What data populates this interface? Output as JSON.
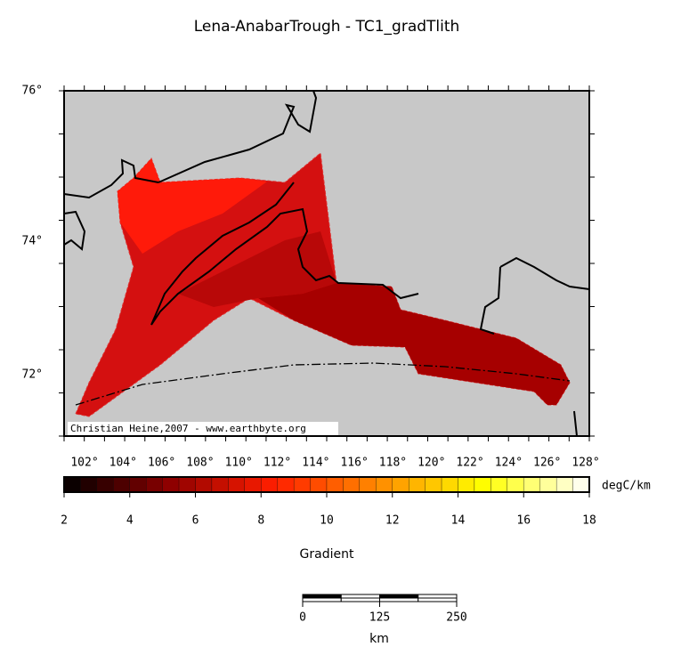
{
  "title": "Lena-AnabarTrough - TC1_gradTlith",
  "map": {
    "lat_labels": [
      "76°",
      "74°",
      "72°"
    ],
    "lon_labels": [
      "102°",
      "104°",
      "106°",
      "108°",
      "110°",
      "112°",
      "114°",
      "116°",
      "118°",
      "120°",
      "122°",
      "124°",
      "126°",
      "128°"
    ],
    "credit": "Christian Heine,2007 - www.earthbyte.org"
  },
  "colorbar": {
    "ticks": [
      2,
      4,
      6,
      8,
      10,
      12,
      14,
      16,
      18
    ],
    "unit": "degC/km",
    "label": "Gradient"
  },
  "scale_bar": {
    "ticks": [
      0,
      125,
      250
    ],
    "unit": "km"
  }
}
